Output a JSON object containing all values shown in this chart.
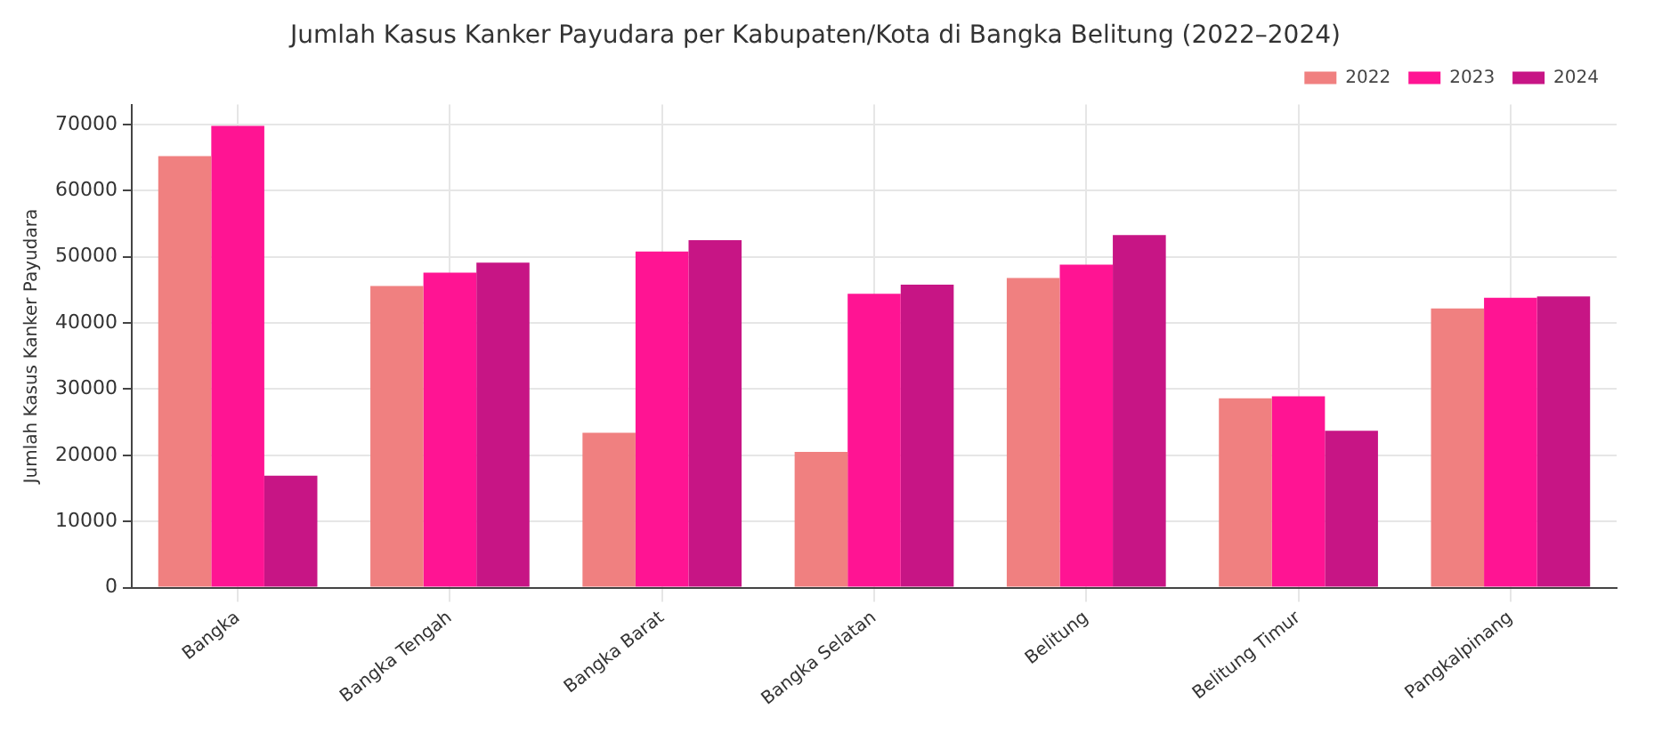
{
  "chart_data": {
    "type": "bar",
    "title": "Jumlah Kasus Kanker Payudara per Kabupaten/Kota di Bangka Belitung (2022–2024)",
    "ylabel": "Jumlah Kasus Kanker Payudara",
    "categories": [
      "Bangka",
      "Bangka Tengah",
      "Bangka Barat",
      "Bangka Selatan",
      "Belitung",
      "Belitung Timur",
      "Pangkalpinang"
    ],
    "series": [
      {
        "name": "2022",
        "color": "#f08080",
        "values": [
          65200,
          45600,
          23400,
          20500,
          46800,
          28600,
          42200
        ]
      },
      {
        "name": "2023",
        "color": "#ff1493",
        "values": [
          69800,
          47600,
          50800,
          44400,
          48800,
          28900,
          43800
        ]
      },
      {
        "name": "2024",
        "color": "#c71585",
        "values": [
          16900,
          49100,
          52500,
          45800,
          53300,
          23700,
          44000
        ]
      }
    ],
    "ylim": [
      0,
      73000
    ],
    "yticks": [
      0,
      10000,
      20000,
      30000,
      40000,
      50000,
      60000,
      70000
    ],
    "grid": true,
    "legend": "top right"
  }
}
